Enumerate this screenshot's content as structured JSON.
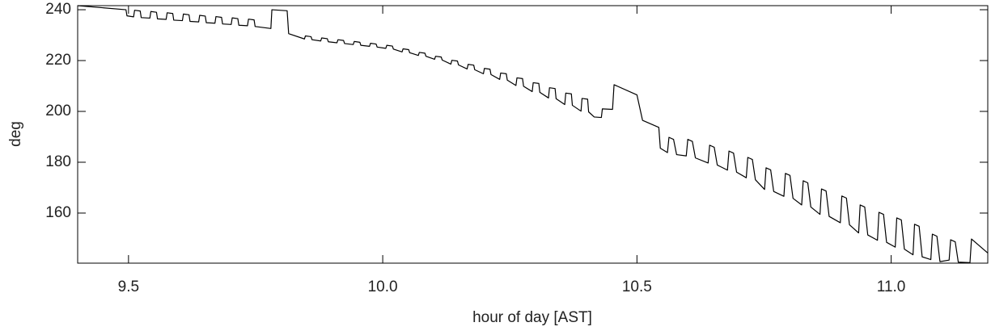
{
  "chart_data": {
    "type": "line",
    "x_label": "hour of day [AST]",
    "y_label": "deg",
    "xlim": [
      9.4,
      11.19
    ],
    "ylim": [
      140.3,
      241.6
    ],
    "xticks": [
      9.5,
      {
        "value": 10,
        "label": "10.0"
      },
      10.5,
      {
        "value": 11,
        "label": "11.0"
      }
    ],
    "yticks": [
      160,
      180,
      200,
      220,
      240
    ],
    "color": "#000000",
    "x": [
      9.4,
      9.495,
      9.497,
      9.51,
      9.512,
      9.523,
      9.525,
      9.542,
      9.544,
      9.555,
      9.557,
      9.574,
      9.576,
      9.587,
      9.589,
      9.606,
      9.608,
      9.619,
      9.621,
      9.638,
      9.64,
      9.651,
      9.653,
      9.67,
      9.672,
      9.683,
      9.685,
      9.702,
      9.704,
      9.715,
      9.717,
      9.734,
      9.736,
      9.747,
      9.749,
      9.78,
      9.782,
      9.812,
      9.815,
      9.846,
      9.848,
      9.859,
      9.861,
      9.878,
      9.88,
      9.891,
      9.893,
      9.91,
      9.912,
      9.923,
      9.925,
      9.942,
      9.944,
      9.955,
      9.957,
      9.974,
      9.976,
      9.987,
      9.989,
      10.006,
      10.008,
      10.019,
      10.021,
      10.038,
      10.04,
      10.051,
      10.053,
      10.07,
      10.072,
      10.083,
      10.085,
      10.102,
      10.104,
      10.115,
      10.117,
      10.134,
      10.136,
      10.147,
      10.149,
      10.166,
      10.168,
      10.179,
      10.181,
      10.198,
      10.2,
      10.211,
      10.213,
      10.23,
      10.232,
      10.243,
      10.245,
      10.262,
      10.264,
      10.275,
      10.277,
      10.294,
      10.296,
      10.307,
      10.309,
      10.326,
      10.328,
      10.339,
      10.341,
      10.358,
      10.36,
      10.371,
      10.373,
      10.39,
      10.392,
      10.403,
      10.405,
      10.416,
      10.43,
      10.432,
      10.452,
      10.455,
      10.5,
      10.511,
      10.543,
      10.546,
      10.56,
      10.563,
      10.572,
      10.578,
      10.597,
      10.6,
      10.609,
      10.615,
      10.64,
      10.643,
      10.652,
      10.658,
      10.678,
      10.681,
      10.69,
      10.696,
      10.715,
      10.718,
      10.727,
      10.733,
      10.751,
      10.754,
      10.763,
      10.769,
      10.789,
      10.792,
      10.801,
      10.807,
      10.824,
      10.827,
      10.836,
      10.842,
      10.86,
      10.863,
      10.872,
      10.878,
      10.9,
      10.903,
      10.912,
      10.918,
      10.936,
      10.939,
      10.948,
      10.954,
      10.973,
      10.976,
      10.985,
      10.991,
      11.008,
      11.011,
      11.02,
      11.026,
      11.043,
      11.046,
      11.055,
      11.061,
      11.078,
      11.081,
      11.09,
      11.096,
      11.114,
      11.117,
      11.126,
      11.132,
      11.155,
      11.158,
      11.19
    ],
    "values": [
      241.6,
      240.0,
      237.6,
      237.2,
      239.8,
      239.5,
      236.9,
      236.7,
      239.3,
      239.0,
      236.4,
      236.2,
      238.8,
      238.5,
      235.9,
      235.7,
      238.3,
      238.0,
      235.4,
      235.2,
      237.8,
      237.5,
      234.9,
      234.7,
      237.3,
      237.0,
      234.4,
      234.2,
      236.8,
      236.5,
      233.9,
      233.7,
      236.3,
      236.0,
      233.4,
      232.6,
      240.0,
      239.6,
      230.6,
      228.5,
      229.7,
      229.4,
      228.2,
      227.7,
      228.9,
      228.6,
      227.4,
      227.0,
      228.2,
      227.9,
      226.7,
      226.3,
      227.5,
      227.2,
      226.0,
      225.6,
      226.8,
      226.5,
      225.3,
      224.8,
      226.0,
      225.7,
      224.5,
      223.4,
      224.6,
      224.3,
      223.1,
      222.0,
      223.2,
      222.9,
      221.7,
      220.5,
      221.7,
      221.4,
      220.2,
      218.6,
      220.1,
      219.8,
      218.3,
      216.7,
      218.5,
      218.2,
      216.4,
      214.8,
      216.9,
      216.6,
      214.5,
      212.6,
      215.1,
      214.8,
      212.3,
      210.2,
      213.2,
      212.9,
      209.9,
      207.8,
      211.3,
      211.0,
      207.5,
      205.3,
      209.3,
      209.0,
      205.0,
      202.7,
      207.2,
      206.9,
      202.4,
      200.1,
      205.1,
      204.8,
      199.8,
      197.8,
      197.6,
      201.0,
      200.8,
      210.5,
      206.5,
      196.5,
      193.7,
      185.5,
      183.8,
      189.8,
      189.0,
      183.0,
      182.5,
      189.0,
      188.2,
      181.7,
      179.7,
      186.7,
      185.9,
      178.9,
      176.9,
      184.4,
      183.6,
      176.1,
      173.9,
      181.9,
      181.1,
      173.1,
      169.3,
      177.8,
      177.0,
      168.5,
      166.6,
      175.6,
      174.8,
      165.8,
      163.2,
      172.7,
      171.9,
      162.4,
      159.5,
      169.5,
      168.7,
      158.7,
      156.2,
      166.7,
      165.9,
      155.4,
      152.2,
      163.2,
      162.4,
      151.4,
      149.3,
      160.3,
      159.5,
      148.5,
      146.6,
      158.1,
      157.3,
      145.8,
      143.6,
      155.6,
      154.8,
      142.8,
      141.7,
      151.7,
      150.9,
      140.9,
      141.5,
      149.5,
      148.7,
      140.7,
      140.5,
      149.8,
      144.3
    ]
  }
}
